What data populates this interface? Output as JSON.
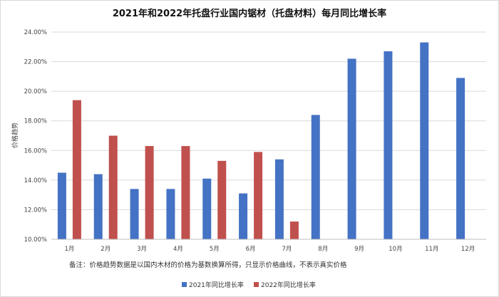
{
  "chart_data": {
    "type": "bar",
    "title": "2021年和2022年托盘行业国内锯材（托盘材料）每月同比增长率",
    "ylabel": "价格趋势",
    "xlabel": "",
    "categories": [
      "1月",
      "2月",
      "3月",
      "4月",
      "5月",
      "6月",
      "7月",
      "8月",
      "9月",
      "10月",
      "11月",
      "12月"
    ],
    "series": [
      {
        "name": "2021年同比增长率",
        "color": "#4472c4",
        "values": [
          0.145,
          0.144,
          0.134,
          0.134,
          0.141,
          0.131,
          0.154,
          0.184,
          0.222,
          0.227,
          0.233,
          0.209
        ]
      },
      {
        "name": "2022年同比增长率",
        "color": "#c0504d",
        "values": [
          0.194,
          0.17,
          0.163,
          0.163,
          0.153,
          0.159,
          0.112,
          null,
          null,
          null,
          null,
          null
        ]
      }
    ],
    "ylim": [
      0.1,
      0.24
    ],
    "yticks": [
      "10.00%",
      "12.00%",
      "14.00%",
      "16.00%",
      "18.00%",
      "20.00%",
      "22.00%",
      "24.00%"
    ],
    "grid": true,
    "legend_position": "bottom",
    "note": "备注：价格趋势数据是以国内木材的价格为基数换算所得，只显示价格曲线，不表示真实价格"
  }
}
